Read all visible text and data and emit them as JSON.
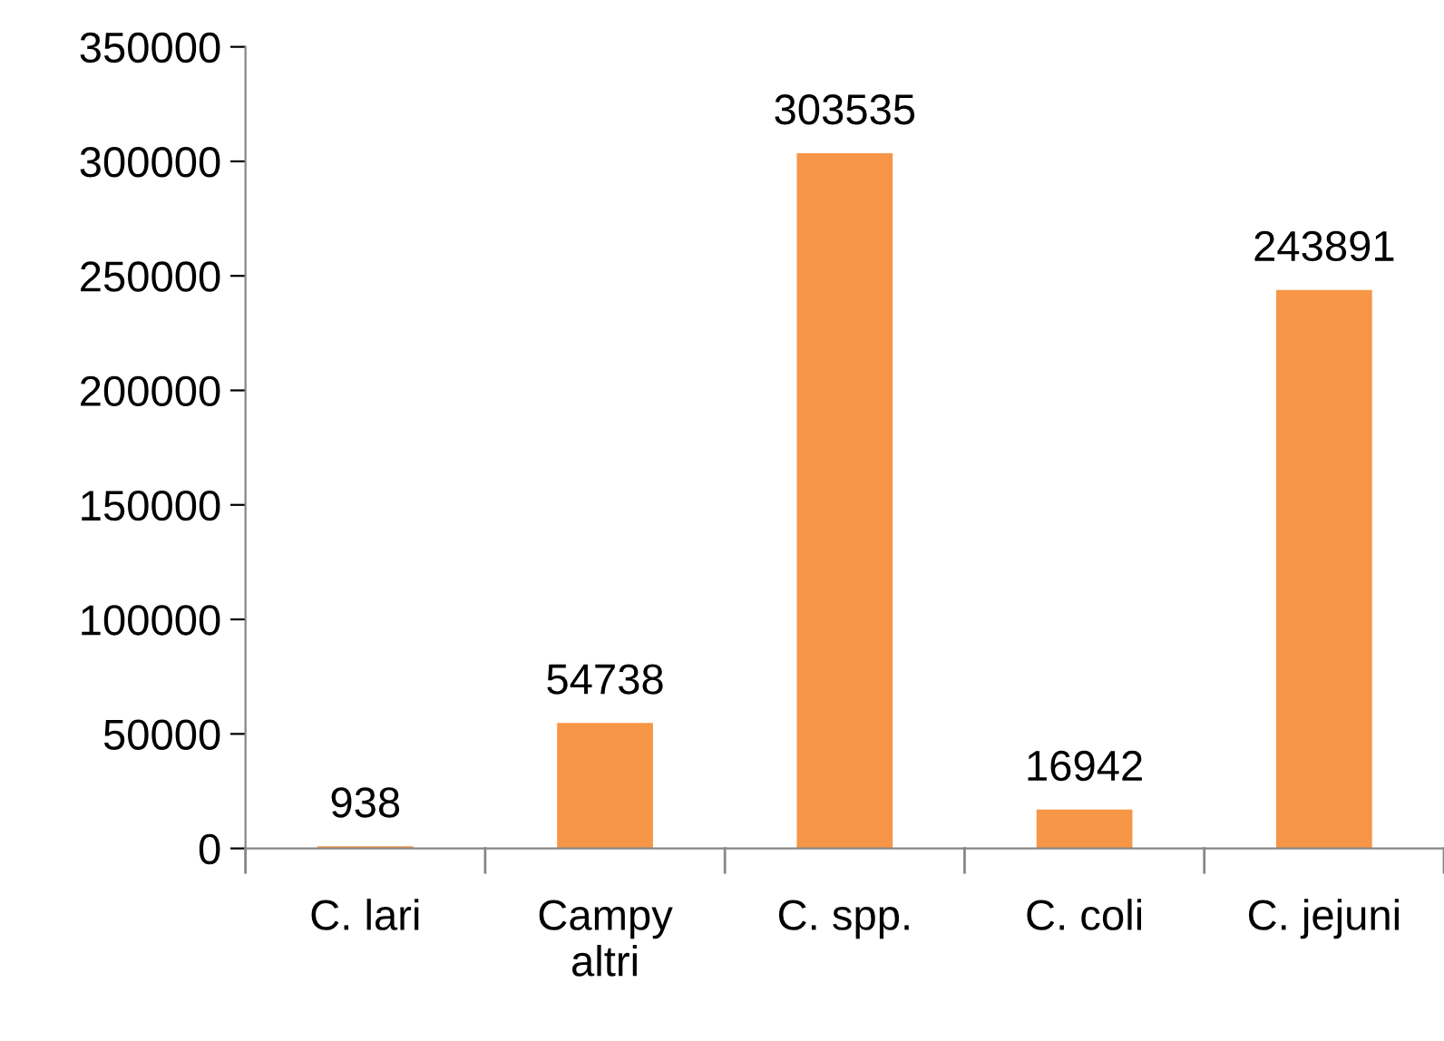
{
  "chart_data": {
    "type": "bar",
    "categories": [
      "C. lari",
      "Campy altri",
      "C. spp.",
      "C. coli",
      "C. jejuni"
    ],
    "values": [
      938,
      54738,
      303535,
      16942,
      243891
    ],
    "color": "#f79646",
    "ylim": [
      0,
      350000
    ],
    "yticks": [
      0,
      50000,
      100000,
      150000,
      200000,
      250000,
      300000,
      350000
    ],
    "grid": false,
    "data_labels": true
  }
}
